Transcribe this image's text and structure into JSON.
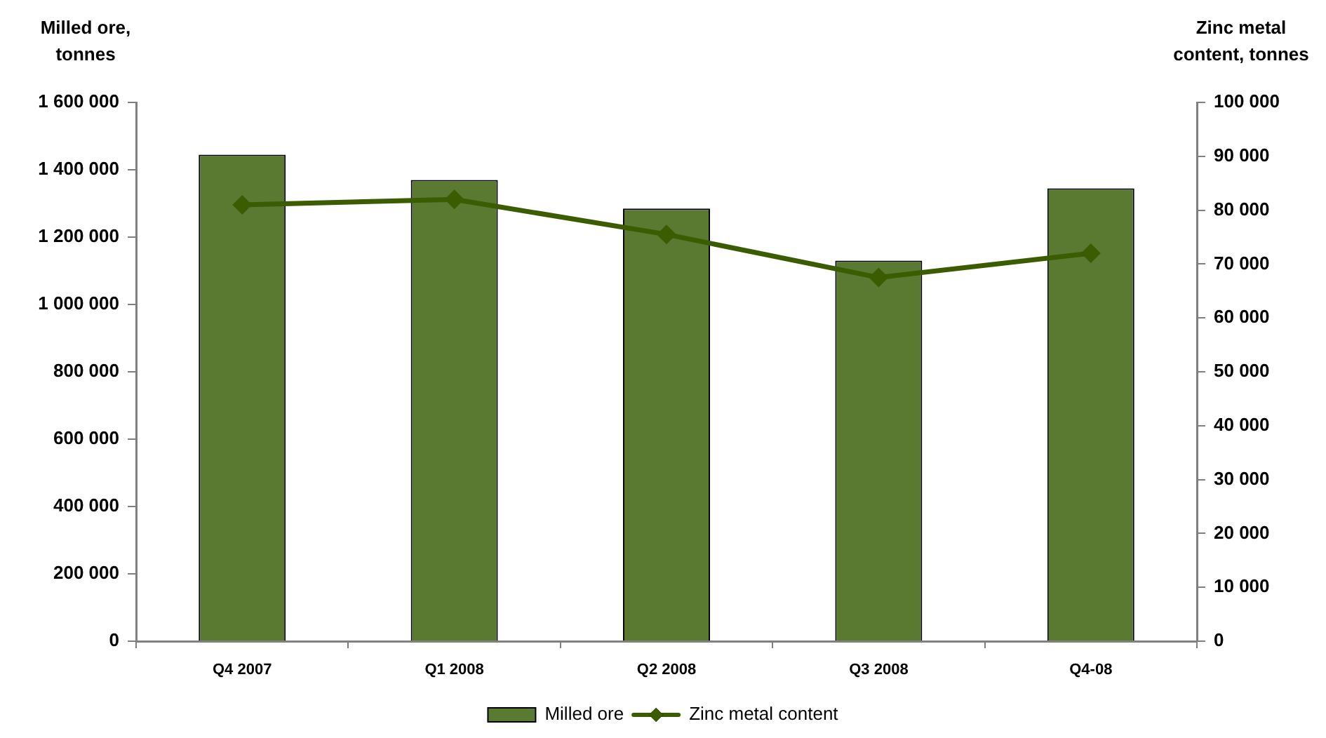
{
  "chart_data": {
    "type": "bar",
    "categories": [
      "Q4 2007",
      "Q1 2008",
      "Q2 2008",
      "Q3 2008",
      "Q4-08"
    ],
    "ylabel": "Milled ore, tonnes",
    "y2label": "Zinc metal content, tonnes",
    "series": [
      {
        "name": "Milled ore",
        "color": "#5a7a32",
        "values": [
          1445000,
          1370000,
          1285000,
          1130000,
          1345000
        ]
      },
      {
        "name": "Zinc metal content",
        "type": "line",
        "axis": "y2",
        "color": "#3b5c00",
        "values": [
          81000,
          82000,
          75500,
          67500,
          72000
        ]
      }
    ],
    "ylim": [
      0,
      1600000
    ],
    "yticks": [
      0,
      {
        "value": 200000,
        "label": "200 000"
      },
      {
        "value": 400000,
        "label": "400 000"
      },
      {
        "value": 600000,
        "label": "600 000"
      },
      {
        "value": 800000,
        "label": "800 000"
      },
      {
        "value": 1000000,
        "label": "1 000 000"
      },
      {
        "value": 1200000,
        "label": "1 200 000"
      },
      {
        "value": 1400000,
        "label": "1 400 000"
      },
      {
        "value": 1600000,
        "label": "1 600 000"
      }
    ],
    "y2lim": [
      0,
      100000
    ],
    "y2ticks": [
      0,
      {
        "value": 10000,
        "label": "10 000"
      },
      {
        "value": 20000,
        "label": "20 000"
      },
      {
        "value": 30000,
        "label": "30 000"
      },
      {
        "value": 40000,
        "label": "40 000"
      },
      {
        "value": 50000,
        "label": "50 000"
      },
      {
        "value": 60000,
        "label": "60 000"
      },
      {
        "value": 70000,
        "label": "70 000"
      },
      {
        "value": 80000,
        "label": "80 000"
      },
      {
        "value": 90000,
        "label": "90 000"
      },
      {
        "value": 100000,
        "label": "100 000"
      }
    ],
    "grid": false,
    "legend": "bottom",
    "marker": "diamond"
  }
}
